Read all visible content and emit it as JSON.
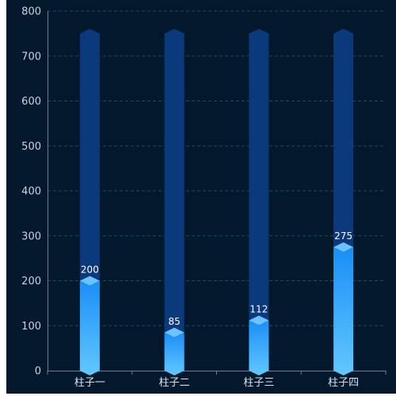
{
  "chart_data": {
    "type": "bar",
    "categories": [
      "柱子一",
      "柱子二",
      "柱子三",
      "柱子四"
    ],
    "values": [
      200,
      85,
      112,
      275
    ],
    "background_max": 750,
    "ylim": [
      0,
      800
    ],
    "yticks": [
      0,
      100,
      200,
      300,
      400,
      500,
      600,
      700,
      800
    ],
    "grid": true,
    "colors": {
      "background": "#01182d",
      "track": "#0b3a7c",
      "bar_top": "#1a8ef7",
      "bar_bottom": "#62c8ff",
      "cap": "#6cc2ff",
      "grid": "#2a4560",
      "axis": "#6b7d8f",
      "value_label": "#ffffff",
      "tick_label": "#c9d4e0"
    }
  }
}
